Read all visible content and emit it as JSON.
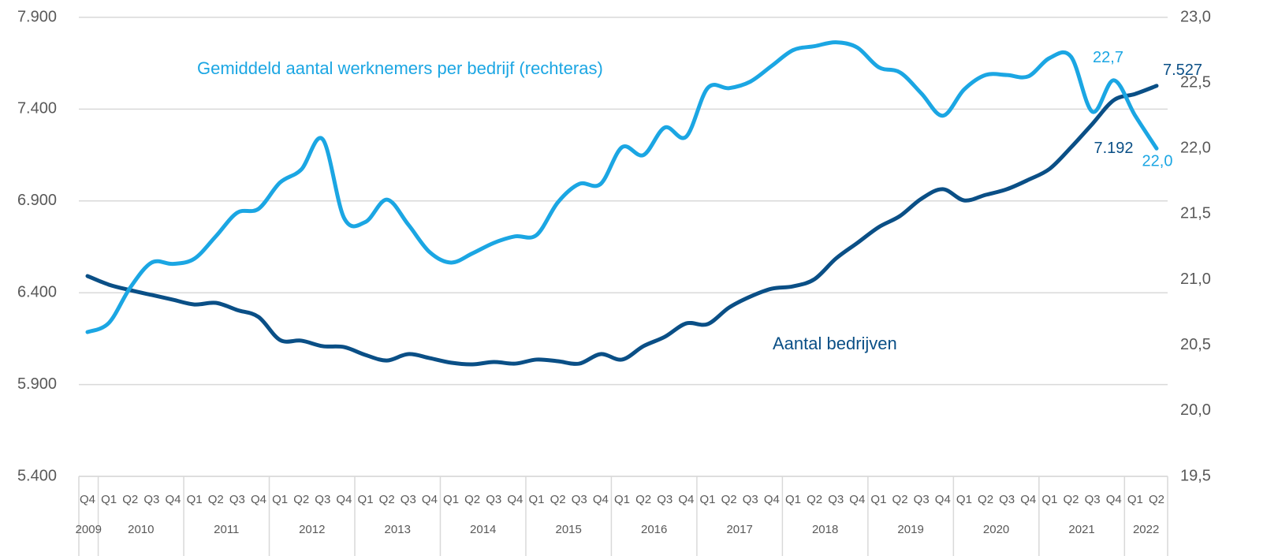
{
  "chart_data": {
    "type": "line",
    "categories": [
      "Q4",
      "Q1",
      "Q2",
      "Q3",
      "Q4",
      "Q1",
      "Q2",
      "Q3",
      "Q4",
      "Q1",
      "Q2",
      "Q3",
      "Q4",
      "Q1",
      "Q2",
      "Q3",
      "Q4",
      "Q1",
      "Q2",
      "Q3",
      "Q4",
      "Q1",
      "Q2",
      "Q3",
      "Q4",
      "Q1",
      "Q2",
      "Q3",
      "Q4",
      "Q1",
      "Q2",
      "Q3",
      "Q4",
      "Q1",
      "Q2",
      "Q3",
      "Q4",
      "Q1",
      "Q2",
      "Q3",
      "Q4",
      "Q1",
      "Q2",
      "Q3",
      "Q4",
      "Q1",
      "Q2",
      "Q3",
      "Q4",
      "Q1",
      "Q2"
    ],
    "years": [
      "2009",
      "2010",
      "2011",
      "2012",
      "2013",
      "2014",
      "2015",
      "2016",
      "2017",
      "2018",
      "2019",
      "2020",
      "2021",
      "2022"
    ],
    "ylim": [
      5400,
      7900
    ],
    "yticks": [
      {
        "value": 5400,
        "label": "5.400"
      },
      {
        "value": 5900,
        "label": "5.900"
      },
      {
        "value": 6400,
        "label": "6.400"
      },
      {
        "value": 6900,
        "label": "6.900"
      },
      {
        "value": 7400,
        "label": "7.400"
      },
      {
        "value": 7900,
        "label": "7.900"
      }
    ],
    "y2lim": [
      19.5,
      23
    ],
    "y2ticks": [
      {
        "value": 19.5,
        "label": "19,5"
      },
      {
        "value": 20,
        "label": "20,0"
      },
      {
        "value": 20.5,
        "label": "20,5"
      },
      {
        "value": 21,
        "label": "21,0"
      },
      {
        "value": 21.5,
        "label": "21,5"
      },
      {
        "value": 22,
        "label": "22,0"
      },
      {
        "value": 22.5,
        "label": "22,5"
      },
      {
        "value": 23,
        "label": "23,0"
      }
    ],
    "grid": true,
    "series": [
      {
        "name": "Aantal bedrijven",
        "color": "#0a4f86",
        "values": [
          6491,
          6444,
          6414,
          6388,
          6362,
          6336,
          6345,
          6306,
          6268,
          6143,
          6139,
          6109,
          6104,
          6061,
          6031,
          6066,
          6044,
          6019,
          6010,
          6023,
          6014,
          6036,
          6027,
          6014,
          6066,
          6036,
          6109,
          6160,
          6233,
          6229,
          6319,
          6379,
          6422,
          6435,
          6474,
          6586,
          6671,
          6757,
          6818,
          6912,
          6964,
          6903,
          6933,
          6964,
          7015,
          7075,
          7192,
          7320,
          7449,
          7483,
          7527
        ],
        "value_labels": [
          null,
          null,
          null,
          null,
          null,
          null,
          null,
          null,
          null,
          null,
          null,
          null,
          null,
          null,
          null,
          null,
          null,
          null,
          null,
          null,
          null,
          null,
          null,
          null,
          null,
          null,
          null,
          null,
          null,
          null,
          null,
          null,
          null,
          null,
          null,
          null,
          null,
          null,
          null,
          null,
          null,
          null,
          null,
          null,
          null,
          null,
          "7.192",
          null,
          null,
          null,
          "7.527"
        ]
      },
      {
        "name": "Gemiddeld aantal werknemers per bedrijf (rechteras)",
        "color": "#1ba6e3",
        "axis": "y2",
        "values": [
          20.6,
          20.67,
          20.94,
          21.13,
          21.12,
          21.16,
          21.33,
          21.51,
          21.54,
          21.74,
          21.84,
          22.07,
          21.47,
          21.44,
          21.61,
          21.42,
          21.21,
          21.13,
          21.2,
          21.28,
          21.33,
          21.34,
          21.59,
          21.73,
          21.73,
          22.01,
          21.95,
          22.16,
          22.09,
          22.46,
          22.46,
          22.51,
          22.63,
          22.75,
          22.78,
          22.81,
          22.77,
          22.62,
          22.58,
          22.42,
          22.25,
          22.45,
          22.56,
          22.56,
          22.55,
          22.69,
          22.7,
          22.28,
          22.52,
          22.25,
          22.0
        ],
        "value_labels": [
          null,
          null,
          null,
          null,
          null,
          null,
          null,
          null,
          null,
          null,
          null,
          null,
          null,
          null,
          null,
          null,
          null,
          null,
          null,
          null,
          null,
          null,
          null,
          null,
          null,
          null,
          null,
          null,
          null,
          null,
          null,
          null,
          null,
          null,
          null,
          null,
          null,
          null,
          null,
          null,
          null,
          null,
          null,
          null,
          null,
          null,
          "22,7",
          null,
          null,
          null,
          "22,0"
        ]
      }
    ]
  }
}
